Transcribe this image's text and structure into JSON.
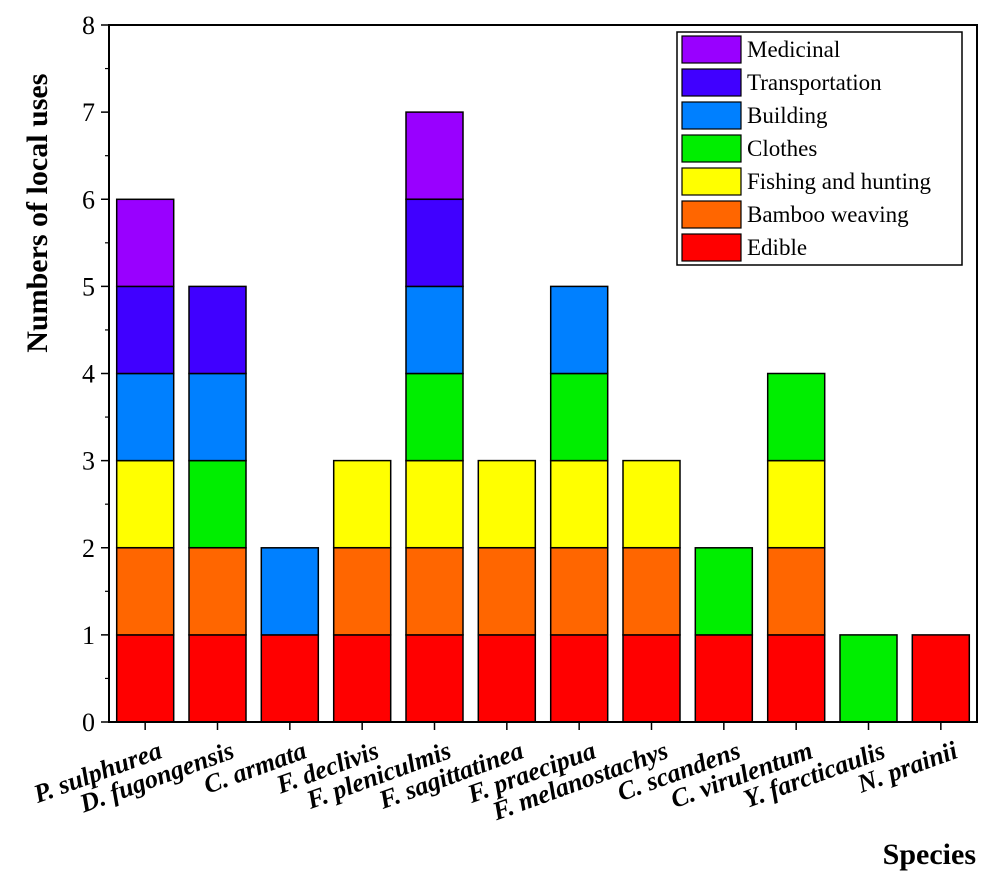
{
  "chart_data": {
    "type": "bar",
    "stacked": true,
    "ylabel": "Numbers of local uses",
    "xlabel": "Species",
    "ylim": [
      0,
      8
    ],
    "yticks": [
      0,
      1,
      2,
      3,
      4,
      5,
      6,
      7,
      8
    ],
    "legend_position": "top-right",
    "categories": [
      "P. sulphurea",
      "D. fugongensis",
      "C. armata",
      "F. declivis",
      "F. pleniculmis",
      "F. sagittatinea",
      "F. praecipua",
      "F. melanostachys",
      "C. scandens",
      "C. virulentum",
      "Y. farcticaulis",
      "N. prainii"
    ],
    "series": [
      {
        "name": "Edible",
        "color": "#ff0000",
        "values": [
          1,
          1,
          1,
          1,
          1,
          1,
          1,
          1,
          1,
          1,
          0,
          1
        ]
      },
      {
        "name": "Bamboo weaving",
        "color": "#ff6600",
        "values": [
          1,
          1,
          0,
          1,
          1,
          1,
          1,
          1,
          0,
          1,
          0,
          0
        ]
      },
      {
        "name": "Fishing and hunting",
        "color": "#ffff00",
        "values": [
          1,
          0,
          0,
          1,
          1,
          1,
          1,
          1,
          0,
          1,
          0,
          0
        ]
      },
      {
        "name": "Clothes",
        "color": "#00ee00",
        "values": [
          0,
          1,
          0,
          0,
          1,
          0,
          1,
          0,
          1,
          1,
          1,
          0
        ]
      },
      {
        "name": "Building",
        "color": "#0080ff",
        "values": [
          1,
          1,
          1,
          0,
          1,
          0,
          1,
          0,
          0,
          0,
          0,
          0
        ]
      },
      {
        "name": "Transportation",
        "color": "#4000ff",
        "values": [
          1,
          1,
          0,
          0,
          1,
          0,
          0,
          0,
          0,
          0,
          0,
          0
        ]
      },
      {
        "name": "Medicinal",
        "color": "#9900ff",
        "values": [
          1,
          0,
          0,
          0,
          1,
          0,
          0,
          0,
          0,
          0,
          0,
          0
        ]
      }
    ]
  }
}
